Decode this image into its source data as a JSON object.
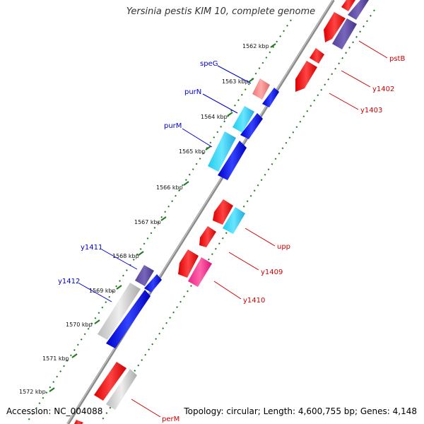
{
  "title": "Yersinia pestis KIM 10, complete genome",
  "accession": "Accession: NC_004088",
  "topology": "Topology: circular; Length: 4,600,755 bp; Genes: 4,148",
  "kbp_ticks": [
    "1562 kbp",
    "1563 kbp",
    "1564 kbp",
    "1565 kbp",
    "1566 kbp",
    "1567 kbp",
    "1568 kbp",
    "1569 kbp",
    "1570 kbp",
    "1571 kbp",
    "1572 kbp"
  ],
  "labels_left": [
    "speG",
    "purN",
    "purM",
    "y1411",
    "y1412"
  ],
  "labels_right": [
    "pstB",
    "y1402",
    "y1403",
    "upp",
    "y1409",
    "y1410",
    "perM"
  ],
  "colors": {
    "blue_dark": "#0000dd",
    "blue_light": "#22ccee",
    "red": "#ee0000",
    "pink": "#ee2288",
    "salmon": "#ee7777",
    "purple": "#554499",
    "gray": "#c8c8c8",
    "backbone": "#999999",
    "tick_green": "#227722"
  }
}
